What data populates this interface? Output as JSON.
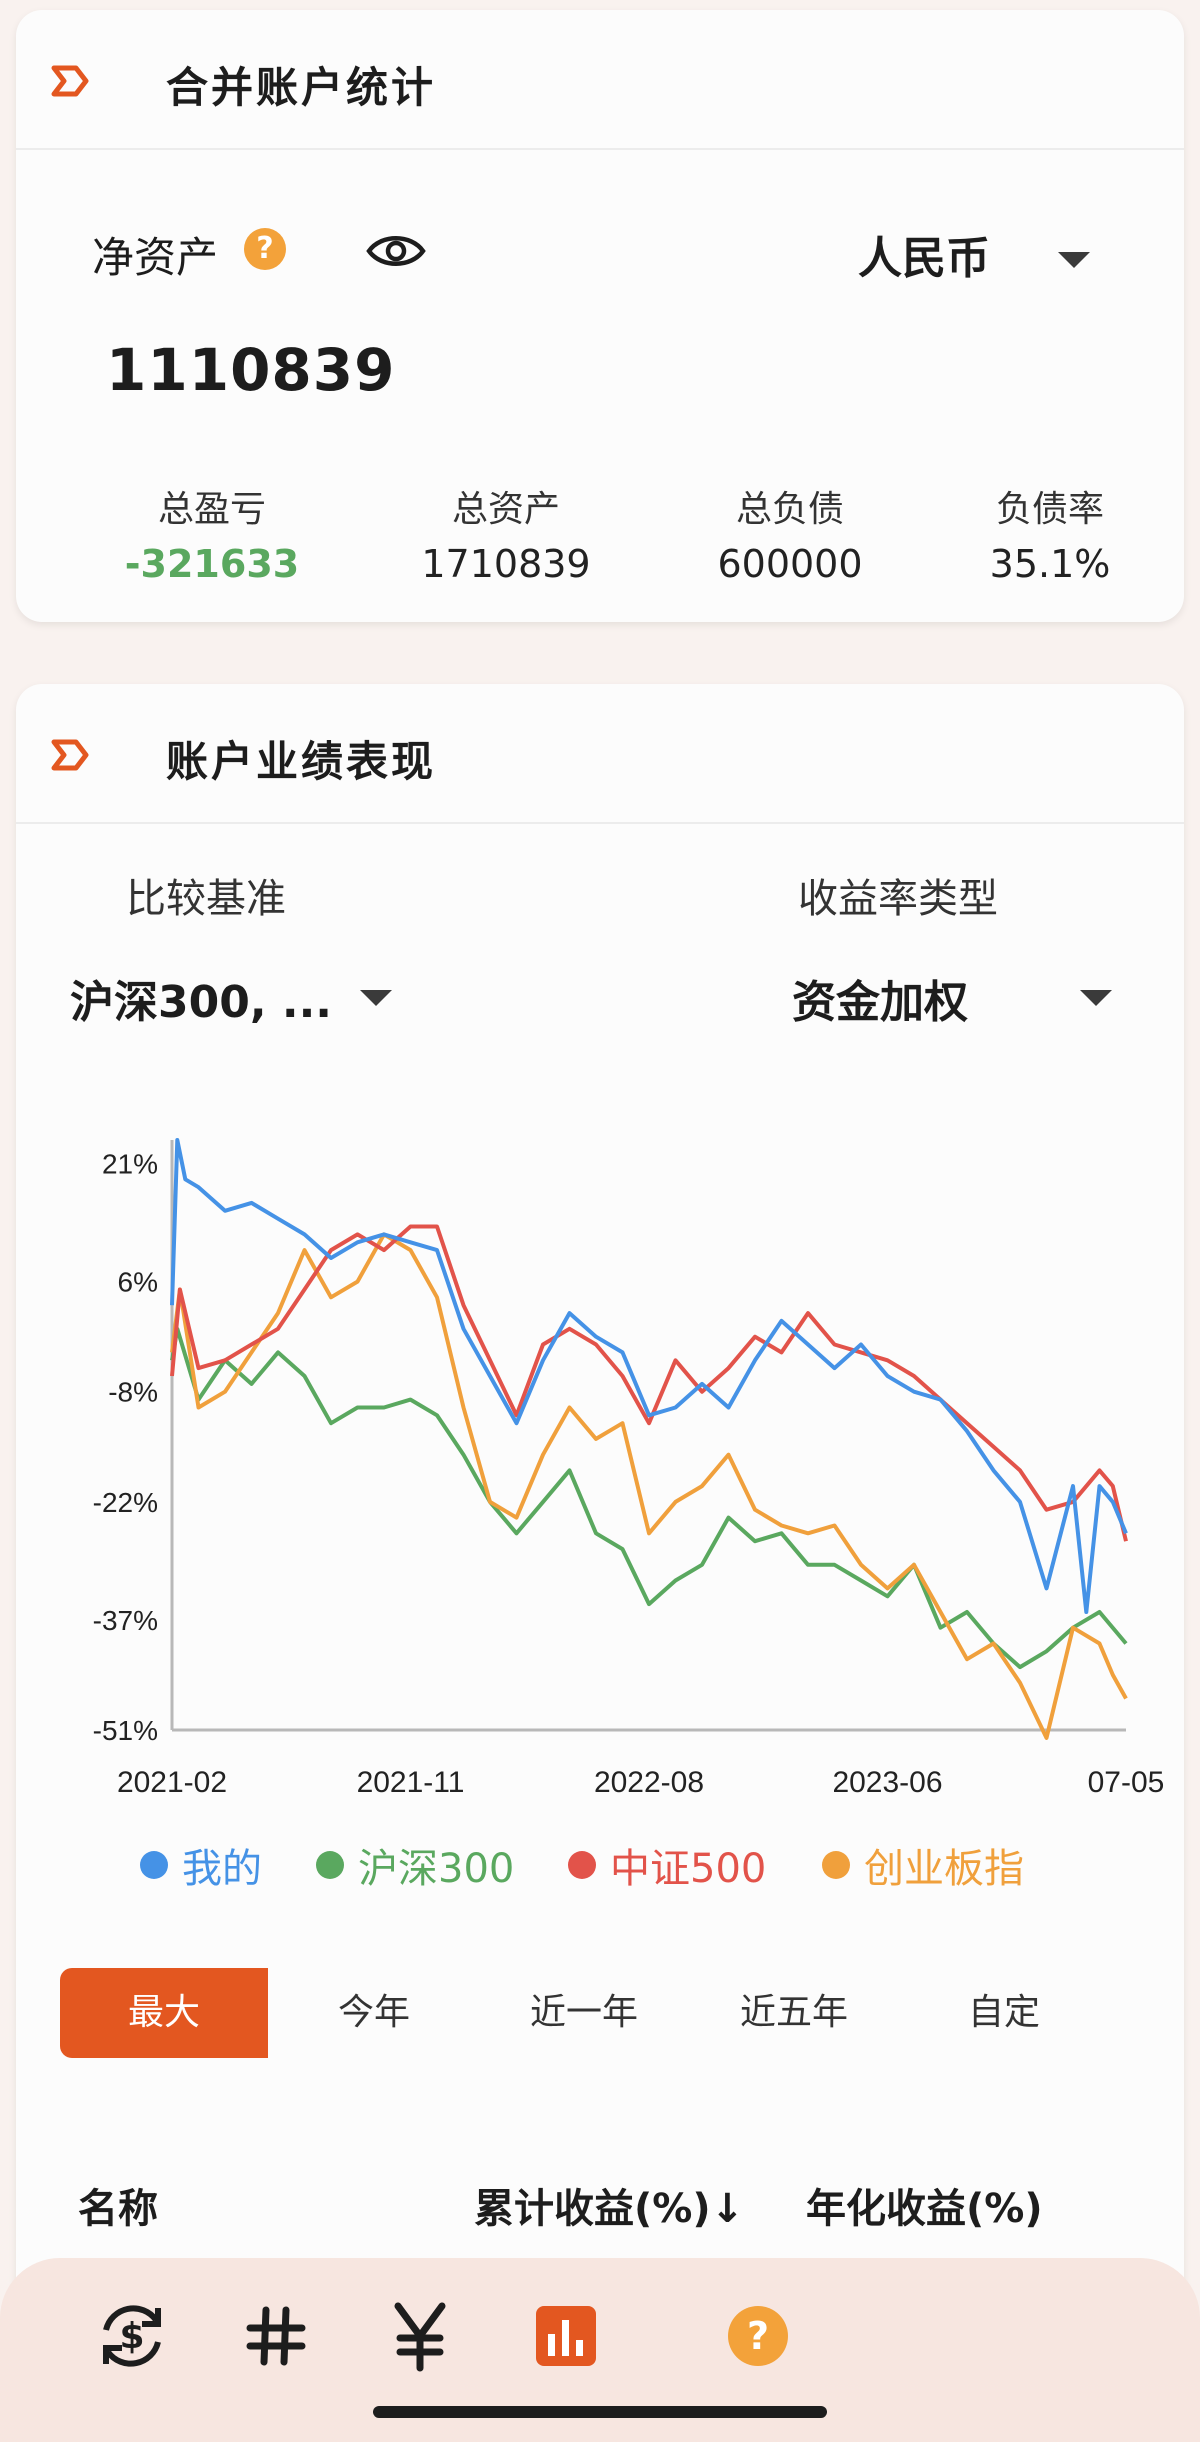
{
  "summary_card": {
    "title": "合并账户统计",
    "net_assets_label": "净资产",
    "net_assets_value": "1110839",
    "currency": "人民币",
    "stats": [
      {
        "label": "总盈亏",
        "value": "-321633"
      },
      {
        "label": "总资产",
        "value": "1710839"
      },
      {
        "label": "总负债",
        "value": "600000"
      },
      {
        "label": "负债率",
        "value": "35.1%"
      }
    ]
  },
  "performance_card": {
    "title": "账户业绩表现",
    "benchmark_label": "比较基准",
    "benchmark_value": "沪深300, ...",
    "return_type_label": "收益率类型",
    "return_type_value": "资金加权",
    "ranges": [
      "最大",
      "今年",
      "近一年",
      "近五年",
      "自定"
    ],
    "active_range": "最大",
    "table_headers": {
      "name": "名称",
      "cumulative": "累计收益(%)↓",
      "annualized": "年化收益(%)"
    }
  },
  "chart_data": {
    "type": "line",
    "title": "",
    "xlabel": "",
    "ylabel": "",
    "y_ticks": [
      "21%",
      "6%",
      "-8%",
      "-22%",
      "-37%",
      "-51%"
    ],
    "y_tick_values": [
      21,
      6,
      -8,
      -22,
      -37,
      -51
    ],
    "ylim": [
      -51,
      24
    ],
    "x_ticks": [
      "2021-02",
      "2021-11",
      "2022-08",
      "2023-06",
      "07-05"
    ],
    "x_tick_values": [
      0,
      9,
      18,
      27,
      36
    ],
    "x_units": "months since 2021-02 (approx.)",
    "legend_position": "bottom",
    "grid": false,
    "series": [
      {
        "name": "我的",
        "color": "#4592e6",
        "x": [
          0,
          0.2,
          0.5,
          1,
          2,
          3,
          4,
          5,
          6,
          7,
          8,
          9,
          10,
          11,
          12,
          13,
          14,
          15,
          16,
          17,
          18,
          19,
          20,
          21,
          22,
          23,
          24,
          25,
          26,
          27,
          28,
          29,
          30,
          31,
          32,
          33,
          34,
          34.5,
          35,
          35.5,
          36
        ],
        "values": [
          3,
          24,
          19,
          18,
          15,
          16,
          14,
          12,
          9,
          11,
          12,
          11,
          10,
          0,
          -6,
          -12,
          -4,
          2,
          -1,
          -3,
          -11,
          -10,
          -7,
          -10,
          -4,
          1,
          -2,
          -5,
          -2,
          -6,
          -8,
          -9,
          -13,
          -18,
          -22,
          -33,
          -20,
          -36,
          -20,
          -22,
          -26
        ]
      },
      {
        "name": "沪深300",
        "color": "#5aa85f",
        "x": [
          0,
          0.2,
          1,
          2,
          3,
          4,
          5,
          6,
          7,
          8,
          9,
          10,
          11,
          12,
          13,
          14,
          15,
          16,
          17,
          18,
          19,
          20,
          21,
          22,
          23,
          24,
          25,
          26,
          27,
          28,
          29,
          30,
          31,
          32,
          33,
          34,
          35,
          36
        ],
        "values": [
          -4,
          0,
          -9,
          -4,
          -7,
          -3,
          -6,
          -12,
          -10,
          -10,
          -9,
          -11,
          -16,
          -22,
          -26,
          -22,
          -18,
          -26,
          -28,
          -35,
          -32,
          -30,
          -24,
          -27,
          -26,
          -30,
          -30,
          -32,
          -34,
          -30,
          -38,
          -36,
          -40,
          -43,
          -41,
          -38,
          -36,
          -40
        ]
      },
      {
        "name": "中证500",
        "color": "#e2534a",
        "x": [
          0,
          0.3,
          1,
          2,
          3,
          4,
          5,
          6,
          7,
          8,
          9,
          10,
          11,
          12,
          13,
          14,
          15,
          16,
          17,
          18,
          19,
          20,
          21,
          22,
          23,
          24,
          25,
          26,
          27,
          28,
          29,
          30,
          31,
          32,
          33,
          34,
          35,
          35.5,
          36
        ],
        "values": [
          -6,
          5,
          -5,
          -4,
          -2,
          0,
          5,
          10,
          12,
          10,
          13,
          13,
          3,
          -4,
          -11,
          -2,
          0,
          -2,
          -6,
          -12,
          -4,
          -8,
          -5,
          -1,
          -3,
          2,
          -2,
          -3,
          -4,
          -6,
          -9,
          -12,
          -15,
          -18,
          -23,
          -22,
          -18,
          -20,
          -27
        ]
      },
      {
        "name": "创业板指",
        "color": "#f0a03c",
        "x": [
          0,
          0.3,
          1,
          2,
          3,
          4,
          5,
          6,
          7,
          8,
          9,
          10,
          11,
          12,
          13,
          14,
          15,
          16,
          17,
          18,
          19,
          20,
          21,
          22,
          23,
          24,
          25,
          26,
          27,
          28,
          29,
          30,
          31,
          32,
          33,
          34,
          35,
          35.5,
          36
        ],
        "values": [
          -3,
          5,
          -10,
          -8,
          -3,
          2,
          10,
          4,
          6,
          12,
          10,
          4,
          -10,
          -22,
          -24,
          -16,
          -10,
          -14,
          -12,
          -26,
          -22,
          -20,
          -16,
          -23,
          -25,
          -26,
          -25,
          -30,
          -33,
          -30,
          -36,
          -42,
          -40,
          -45,
          -52,
          -38,
          -40,
          -44,
          -47
        ]
      }
    ]
  },
  "bottom_nav": {
    "items": [
      "exchange-dollar-icon",
      "hash-icon",
      "yuan-icon",
      "bar-chart-icon",
      "help-icon"
    ],
    "active": "bar-chart-icon"
  },
  "colors": {
    "accent": "#e35720",
    "positive_green": "#5aa85f",
    "help_orange": "#f3a23a"
  }
}
